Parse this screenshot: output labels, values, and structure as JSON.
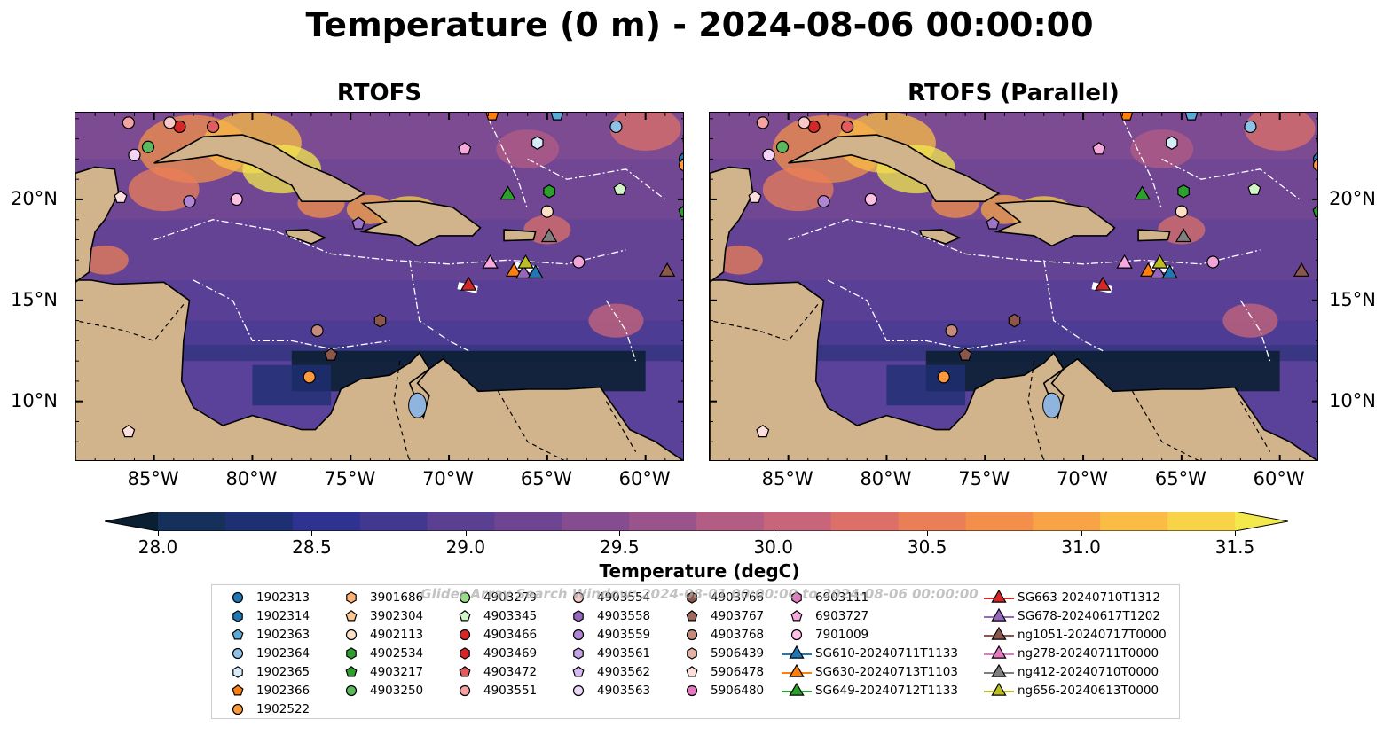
{
  "title": "Temperature (0 m) - 2024-08-06 00:00:00",
  "panels": [
    {
      "title": "RTOFS"
    },
    {
      "title": "RTOFS (Parallel)"
    }
  ],
  "axes": {
    "lon_ticks": [
      "85°W",
      "80°W",
      "75°W",
      "70°W",
      "65°W",
      "60°W"
    ],
    "lat_ticks": [
      "20°N",
      "15°N",
      "10°N"
    ]
  },
  "colorbar": {
    "label": "Temperature (degC)",
    "ticks": [
      "28.0",
      "28.5",
      "29.0",
      "29.5",
      "30.0",
      "30.5",
      "31.0",
      "31.5"
    ],
    "colors": [
      "#0b1f33",
      "#15305a",
      "#1f2f73",
      "#2e3290",
      "#43388f",
      "#5a3f93",
      "#6e4592",
      "#854c8f",
      "#9b538b",
      "#b35c84",
      "#c9657a",
      "#dc7068",
      "#ea7e57",
      "#f38f4a",
      "#f8a446",
      "#fbbc46",
      "#f8d247",
      "#f3e84c"
    ]
  },
  "watermark": "Glider Array Search Window: 2024-08-01 00:00:00 to 2024-08-06 00:00:00",
  "chart_data": {
    "type": "map",
    "lon_range": [
      -89,
      -58
    ],
    "lat_range": [
      7,
      24.3
    ],
    "variable": "Temperature (0 m)",
    "units": "degC",
    "color_range": [
      28.0,
      31.5
    ],
    "argo_floats": [
      {
        "id": "1902313",
        "lon": -58.0,
        "lat": 22.0,
        "marker": "circle",
        "color": "#1f77b4"
      },
      {
        "id": "1902314",
        "lon": -57.8,
        "lat": 23.0,
        "marker": "hexagon",
        "color": "#1f77b4"
      },
      {
        "id": "1902363",
        "lon": -64.5,
        "lat": 24.2,
        "marker": "pentagon",
        "color": "#5aa9d6"
      },
      {
        "id": "1902364",
        "lon": -61.5,
        "lat": 23.6,
        "marker": "circle",
        "color": "#8fc1e8"
      },
      {
        "id": "1902365",
        "lon": -65.5,
        "lat": 22.8,
        "marker": "hexagon",
        "color": "#d6ecfa"
      },
      {
        "id": "1902366",
        "lon": -67.8,
        "lat": 24.2,
        "marker": "pentagon",
        "color": "#ff7f0e"
      },
      {
        "id": "1902522",
        "lon": -58.0,
        "lat": 21.7,
        "marker": "circle",
        "color": "#ff9a3c"
      },
      {
        "id": "4903466",
        "lon": -83.7,
        "lat": 23.6,
        "marker": "circle",
        "color": "#d62728"
      },
      {
        "id": "4903250",
        "lon": -85.3,
        "lat": 22.6,
        "marker": "circle",
        "color": "#5cb85c"
      },
      {
        "id": "4903217",
        "lon": -61.3,
        "lat": 20.5,
        "marker": "pentagon",
        "color": "#d2f5c8"
      },
      {
        "id": "4902534",
        "lon": -64.9,
        "lat": 20.4,
        "marker": "hexagon",
        "color": "#2ca02c"
      },
      {
        "id": "4903279",
        "lon": -58.0,
        "lat": 19.4,
        "marker": "pentagon",
        "color": "#2ca02c"
      },
      {
        "id": "4902113",
        "lon": -65.0,
        "lat": 19.4,
        "marker": "circle",
        "color": "#fde0c5"
      },
      {
        "id": "4903559",
        "lon": -83.2,
        "lat": 19.9,
        "marker": "circle",
        "color": "#b085d6"
      },
      {
        "id": "7901009",
        "lon": -80.8,
        "lat": 20.0,
        "marker": "circle",
        "color": "#ffc0e6"
      },
      {
        "id": "6903727",
        "lon": -69.2,
        "lat": 22.5,
        "marker": "pentagon",
        "color": "#f7a8dd"
      },
      {
        "id": "4903562",
        "lon": -74.6,
        "lat": 18.8,
        "marker": "pentagon",
        "color": "#9b74c7"
      },
      {
        "id": "6903111",
        "lon": -63.4,
        "lat": 16.9,
        "marker": "circle",
        "color": "#f2a3d8"
      },
      {
        "id": "4903767",
        "lon": -73.5,
        "lat": 14.0,
        "marker": "hexagon",
        "color": "#8c564b"
      },
      {
        "id": "4903768",
        "lon": -76.7,
        "lat": 13.5,
        "marker": "circle",
        "color": "#c48a7a"
      },
      {
        "id": "4903766",
        "lon": -76.0,
        "lat": 12.3,
        "marker": "pentagon",
        "color": "#8c564b"
      },
      {
        "id": "1902522b",
        "lon": -77.1,
        "lat": 11.2,
        "marker": "circle",
        "color": "#ff9a3c"
      },
      {
        "id": "5906478",
        "lon": -86.3,
        "lat": 8.5,
        "marker": "pentagon",
        "color": "#fde0dd"
      },
      {
        "id": "4903551",
        "lon": -86.3,
        "lat": 23.8,
        "marker": "circle",
        "color": "#f4a3a3"
      },
      {
        "id": "4903554",
        "lon": -84.2,
        "lat": 23.8,
        "marker": "circle",
        "color": "#f8c7c7"
      },
      {
        "id": "4903472",
        "lon": -82.0,
        "lat": 23.6,
        "marker": "circle",
        "color": "#e15c5c"
      },
      {
        "id": "4903563",
        "lon": -86.0,
        "lat": 22.2,
        "marker": "circle",
        "color": "#f4d3f7"
      },
      {
        "id": "5906439",
        "lon": -86.7,
        "lat": 20.1,
        "marker": "pentagon",
        "color": "#fde0dd"
      }
    ],
    "gliders": [
      {
        "id": "SG663-20240710T1312",
        "lon": -69.0,
        "lat": 15.8,
        "color": "#d62728"
      },
      {
        "id": "SG649-20240712T1133",
        "lon": -67.0,
        "lat": 20.3,
        "color": "#2ca02c"
      },
      {
        "id": "ng278-20240711T0000",
        "lon": -67.9,
        "lat": 16.9,
        "color": "#f7a8dd"
      },
      {
        "id": "SG630-20240713T1103",
        "lon": -66.7,
        "lat": 16.5,
        "color": "#ff7f0e"
      },
      {
        "id": "SG678-20240617T1202",
        "lon": -66.2,
        "lat": 16.4,
        "color": "#9467bd"
      },
      {
        "id": "SG610-20240711T1133",
        "lon": -65.6,
        "lat": 16.4,
        "color": "#1f77b4"
      },
      {
        "id": "ng656-20240613T0000",
        "lon": -66.1,
        "lat": 16.9,
        "color": "#bcbd22"
      },
      {
        "id": "ng412-20240710T0000",
        "lon": -64.9,
        "lat": 18.2,
        "color": "#7f7f7f"
      },
      {
        "id": "ng1051-20240717T0000",
        "lon": -58.9,
        "lat": 16.5,
        "color": "#8c564b"
      }
    ]
  },
  "legend": {
    "columns": [
      [
        {
          "label": "1902313",
          "marker": "circle",
          "color": "#1f77b4"
        },
        {
          "label": "1902314",
          "marker": "hexagon",
          "color": "#1f77b4"
        },
        {
          "label": "1902363",
          "marker": "pentagon",
          "color": "#5aa9d6"
        },
        {
          "label": "1902364",
          "marker": "circle",
          "color": "#8fc1e8"
        },
        {
          "label": "1902365",
          "marker": "hexagon",
          "color": "#d6ecfa"
        },
        {
          "label": "1902366",
          "marker": "pentagon",
          "color": "#ff7f0e"
        },
        {
          "label": "1902522",
          "marker": "circle",
          "color": "#ff9a3c"
        }
      ],
      [
        {
          "label": "3901686",
          "marker": "hexagon",
          "color": "#ffb070"
        },
        {
          "label": "3902304",
          "marker": "pentagon",
          "color": "#ffc891"
        },
        {
          "label": "4902113",
          "marker": "circle",
          "color": "#fde0c5"
        },
        {
          "label": "4902534",
          "marker": "hexagon",
          "color": "#2ca02c"
        },
        {
          "label": "4903217",
          "marker": "pentagon",
          "color": "#2ca02c"
        },
        {
          "label": "4903250",
          "marker": "circle",
          "color": "#5cb85c"
        }
      ],
      [
        {
          "label": "4903279",
          "marker": "circle",
          "color": "#98df8a"
        },
        {
          "label": "4903345",
          "marker": "pentagon",
          "color": "#d2f5c8"
        },
        {
          "label": "4903466",
          "marker": "circle",
          "color": "#d62728"
        },
        {
          "label": "4903469",
          "marker": "hexagon",
          "color": "#d62728"
        },
        {
          "label": "4903472",
          "marker": "pentagon",
          "color": "#e15c5c"
        },
        {
          "label": "4903551",
          "marker": "circle",
          "color": "#f4a3a3"
        }
      ],
      [
        {
          "label": "4903554",
          "marker": "circle",
          "color": "#f8c7c7"
        },
        {
          "label": "4903558",
          "marker": "hexagon",
          "color": "#9467bd"
        },
        {
          "label": "4903559",
          "marker": "circle",
          "color": "#b085d6"
        },
        {
          "label": "4903561",
          "marker": "hexagon",
          "color": "#c5a3e6"
        },
        {
          "label": "4903562",
          "marker": "pentagon",
          "color": "#d5b9f0"
        },
        {
          "label": "4903563",
          "marker": "circle",
          "color": "#ead6f7"
        }
      ],
      [
        {
          "label": "4903766",
          "marker": "hexagon",
          "color": "#8c564b"
        },
        {
          "label": "4903767",
          "marker": "pentagon",
          "color": "#a06a5e"
        },
        {
          "label": "4903768",
          "marker": "circle",
          "color": "#c48a7a"
        },
        {
          "label": "5906439",
          "marker": "hexagon",
          "color": "#e5b2a3"
        },
        {
          "label": "5906478",
          "marker": "pentagon",
          "color": "#fde0dd"
        },
        {
          "label": "5906480",
          "marker": "circle",
          "color": "#e377c2"
        }
      ],
      [
        {
          "label": "6903111",
          "marker": "hexagon",
          "color": "#e377c2"
        },
        {
          "label": "6903727",
          "marker": "pentagon",
          "color": "#f7a8dd"
        },
        {
          "label": "7901009",
          "marker": "circle",
          "color": "#ffc0e6"
        },
        {
          "label": "SG610-20240711T1133",
          "marker": "triangle",
          "color": "#1f77b4"
        },
        {
          "label": "SG630-20240713T1103",
          "marker": "triangle",
          "color": "#ff7f0e"
        },
        {
          "label": "SG649-20240712T1133",
          "marker": "triangle",
          "color": "#2ca02c"
        }
      ],
      [
        {
          "label": "SG663-20240710T1312",
          "marker": "triangle",
          "color": "#d62728"
        },
        {
          "label": "SG678-20240617T1202",
          "marker": "triangle",
          "color": "#9467bd"
        },
        {
          "label": "ng1051-20240717T0000",
          "marker": "triangle",
          "color": "#8c564b"
        },
        {
          "label": "ng278-20240711T0000",
          "marker": "triangle",
          "color": "#e377c2"
        },
        {
          "label": "ng412-20240710T0000",
          "marker": "triangle",
          "color": "#7f7f7f"
        },
        {
          "label": "ng656-20240613T0000",
          "marker": "triangle",
          "color": "#bcbd22"
        }
      ]
    ]
  }
}
